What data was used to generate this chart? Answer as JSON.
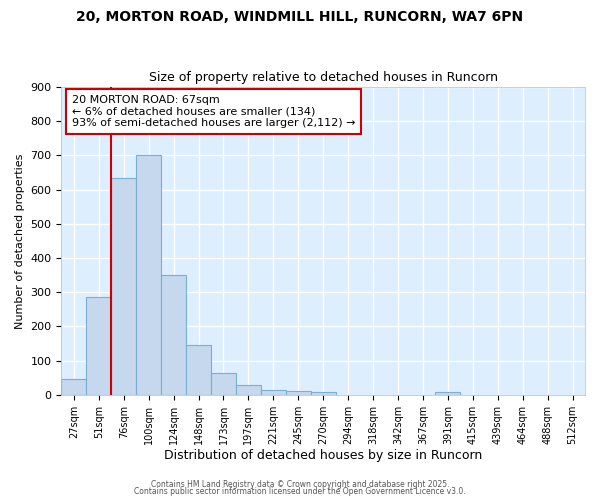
{
  "title1": "20, MORTON ROAD, WINDMILL HILL, RUNCORN, WA7 6PN",
  "title2": "Size of property relative to detached houses in Runcorn",
  "xlabel": "Distribution of detached houses by size in Runcorn",
  "ylabel": "Number of detached properties",
  "categories": [
    "27sqm",
    "51sqm",
    "76sqm",
    "100sqm",
    "124sqm",
    "148sqm",
    "173sqm",
    "197sqm",
    "221sqm",
    "245sqm",
    "270sqm",
    "294sqm",
    "318sqm",
    "342sqm",
    "367sqm",
    "391sqm",
    "415sqm",
    "439sqm",
    "464sqm",
    "488sqm",
    "512sqm"
  ],
  "values": [
    45,
    285,
    635,
    700,
    350,
    145,
    65,
    30,
    15,
    10,
    8,
    0,
    0,
    0,
    0,
    8,
    0,
    0,
    0,
    0,
    0
  ],
  "bar_color": "#c5d8ee",
  "bar_edge_color": "#7aafd4",
  "vline_color": "#cc0000",
  "annotation_text": "20 MORTON ROAD: 67sqm\n← 6% of detached houses are smaller (134)\n93% of semi-detached houses are larger (2,112) →",
  "annotation_box_color": "#ffffff",
  "annotation_box_edge": "#cc0000",
  "bg_color": "#ddeeff",
  "grid_color": "#ffffff",
  "fig_color": "#ffffff",
  "ylim": [
    0,
    900
  ],
  "yticks": [
    0,
    100,
    200,
    300,
    400,
    500,
    600,
    700,
    800,
    900
  ],
  "footer1": "Contains HM Land Registry data © Crown copyright and database right 2025.",
  "footer2": "Contains public sector information licensed under the Open Government Licence v3.0."
}
